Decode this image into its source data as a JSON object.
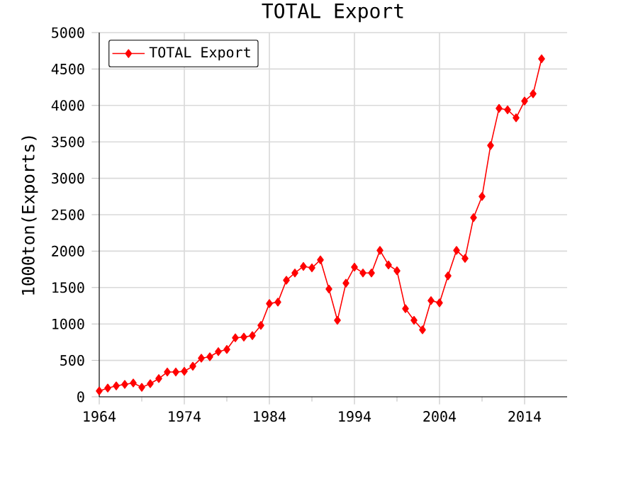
{
  "chart_data": {
    "type": "line",
    "title": "TOTAL Export",
    "ylabel": "1000ton(Exports)",
    "x": [
      1964,
      1965,
      1966,
      1967,
      1968,
      1969,
      1970,
      1971,
      1972,
      1973,
      1974,
      1975,
      1976,
      1977,
      1978,
      1979,
      1980,
      1981,
      1982,
      1983,
      1984,
      1985,
      1986,
      1987,
      1988,
      1989,
      1990,
      1991,
      1992,
      1993,
      1994,
      1995,
      1996,
      1997,
      1998,
      1999,
      2000,
      2001,
      2002,
      2003,
      2004,
      2005,
      2006,
      2007,
      2008,
      2009,
      2010,
      2011,
      2012,
      2013,
      2014,
      2015,
      2016
    ],
    "series": [
      {
        "name": "TOTAL Export",
        "color": "#ff0000",
        "values": [
          80,
          120,
          150,
          170,
          190,
          130,
          180,
          250,
          340,
          340,
          350,
          420,
          530,
          550,
          620,
          650,
          810,
          820,
          840,
          980,
          1280,
          1300,
          1600,
          1700,
          1790,
          1770,
          1880,
          1480,
          1050,
          1560,
          1780,
          1700,
          1700,
          2010,
          1810,
          1730,
          1210,
          1050,
          920,
          1320,
          1290,
          1660,
          2010,
          1900,
          2460,
          2750,
          3450,
          3960,
          3940,
          3830,
          4060,
          4160,
          4640
        ]
      }
    ],
    "xlim": [
      1964,
      2019
    ],
    "ylim": [
      0,
      5000
    ],
    "xticks": [
      1964,
      1974,
      1984,
      1994,
      2004,
      2014
    ],
    "yticks": [
      0,
      500,
      1000,
      1500,
      2000,
      2500,
      3000,
      3500,
      4000,
      4500,
      5000
    ],
    "grid": true,
    "legend": "top left",
    "marker": "diamond",
    "line_style": "solid"
  }
}
